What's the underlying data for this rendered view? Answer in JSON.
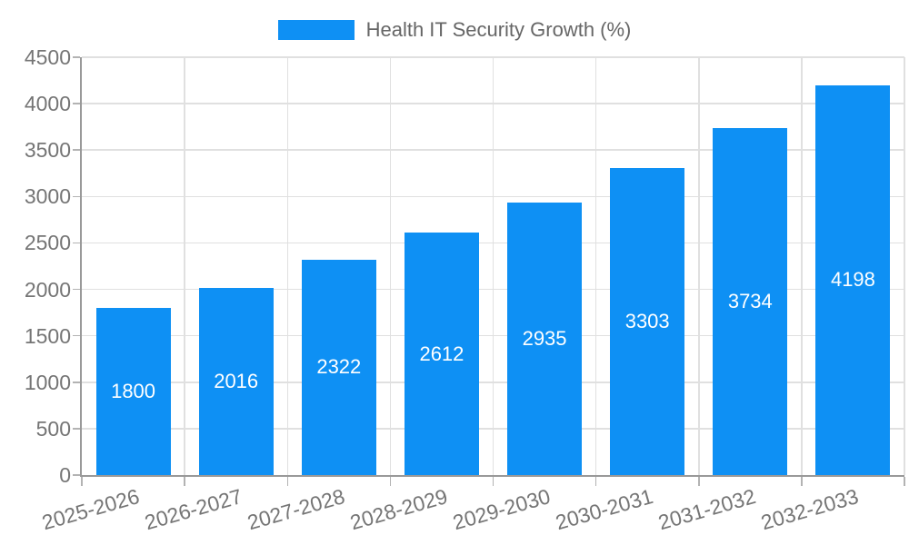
{
  "chart_data": {
    "type": "bar",
    "title": "Health IT Security Growth (%)",
    "legend_label": "Health IT Security Growth (%)",
    "legend_position": "top-center",
    "categories": [
      "2025-2026",
      "2026-2027",
      "2027-2028",
      "2028-2029",
      "2029-2030",
      "2030-2031",
      "2031-2032",
      "2032-2033"
    ],
    "values": [
      1800,
      2016,
      2322,
      2612,
      2935,
      3303,
      3734,
      4198
    ],
    "value_labels": [
      "1800",
      "2016",
      "2322",
      "2612",
      "2935",
      "3303",
      "3734",
      "4198"
    ],
    "xlabel": "",
    "ylabel": "",
    "ylim": [
      0,
      4500
    ],
    "ytick_step": 500,
    "ytick_labels": [
      "0",
      "500",
      "1000",
      "1500",
      "2000",
      "2500",
      "3000",
      "3500",
      "4000",
      "4500"
    ],
    "grid": true,
    "x_label_rotation_deg": -16,
    "colors": {
      "bar": "#0e90f4",
      "value_text": "#ffffff",
      "axis_text": "#757575",
      "legend_text": "#666666",
      "gridline": "#e0e0e0",
      "axis_line": "#999999",
      "tick": "#b3b3b3",
      "background": "#ffffff"
    }
  }
}
